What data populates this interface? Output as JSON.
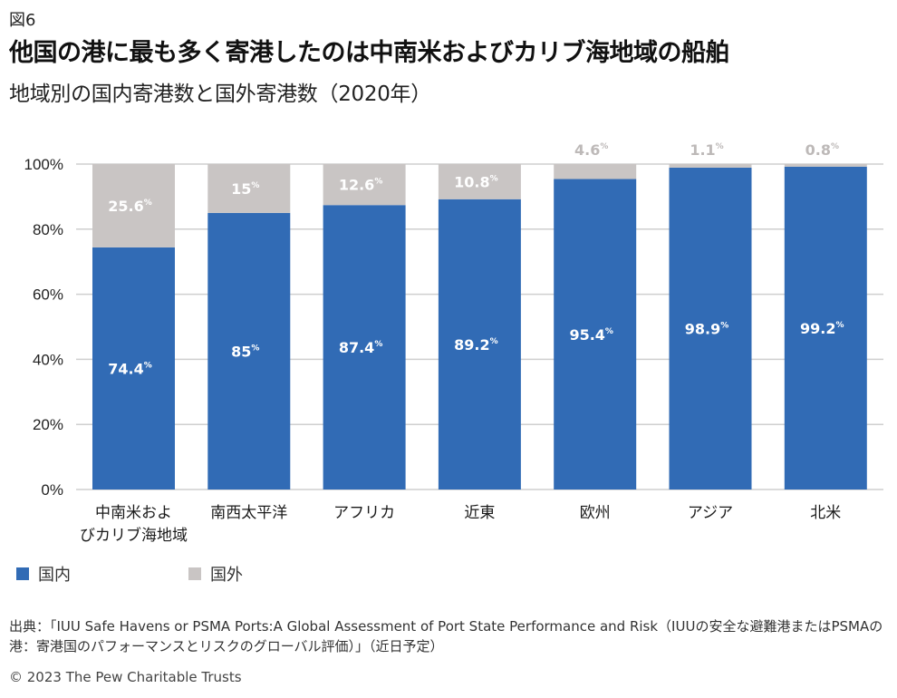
{
  "figure_label": "図6",
  "title": "他国の港に最も多く寄港したのは中南米およびカリブ海地域の船舶",
  "subtitle": "地域別の国内寄港数と国外寄港数（2020年）",
  "colors": {
    "domestic": "#316BB5",
    "foreign": "#C9C5C4",
    "grid": "#CFCFCF",
    "label_on_bar": "#FFFFFF",
    "label_above": "#BDB9B8"
  },
  "chart_data": {
    "type": "bar",
    "stacked": true,
    "title": "他国の港に最も多く寄港したのは中南米およびカリブ海地域の船舶",
    "subtitle": "地域別の国内寄港数と国外寄港数（2020年）",
    "xlabel": "",
    "ylabel": "",
    "ylim": [
      0,
      100
    ],
    "yticks": [
      0,
      20,
      40,
      60,
      80,
      100
    ],
    "ytick_labels": [
      "0%",
      "20%",
      "40%",
      "60%",
      "80%",
      "100%"
    ],
    "grid": true,
    "categories": [
      [
        "中南米およ",
        "びカリブ海地域"
      ],
      [
        "南西太平洋"
      ],
      [
        "アフリカ"
      ],
      [
        "近東"
      ],
      [
        "欧州"
      ],
      [
        "アジア"
      ],
      [
        "北米"
      ]
    ],
    "series": [
      {
        "name": "国内",
        "values": [
          74.4,
          85,
          87.4,
          89.2,
          95.4,
          98.9,
          99.2
        ],
        "labels": [
          "74.4",
          "85",
          "87.4",
          "89.2",
          "95.4",
          "98.9",
          "99.2"
        ]
      },
      {
        "name": "国外",
        "values": [
          25.6,
          15,
          12.6,
          10.8,
          4.6,
          1.1,
          0.8
        ],
        "labels": [
          "25.6",
          "15",
          "12.6",
          "10.8",
          "4.6",
          "1.1",
          "0.8"
        ]
      }
    ],
    "label_suffix": "%",
    "legend_position": "bottom-left"
  },
  "legend": [
    {
      "label": "国内"
    },
    {
      "label": "国外"
    }
  ],
  "source": "出典：「IUU Safe Havens or PSMA Ports:A Global Assessment of Port State Performance and Risk（IUUの安全な避難港またはPSMAの港：寄港国のパフォーマンスとリスクのグローバル評価）」（近日予定）",
  "copyright": "© 2023 The Pew Charitable Trusts"
}
